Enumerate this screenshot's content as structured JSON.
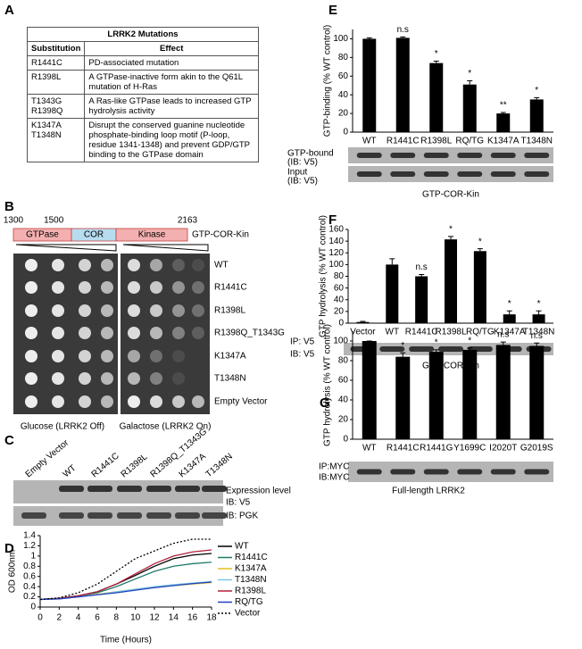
{
  "panels": [
    "A",
    "B",
    "C",
    "D",
    "E",
    "F",
    "G"
  ],
  "table": {
    "title": "LRRK2 Mutations",
    "header": [
      "Substitution",
      "Effect"
    ],
    "rows": [
      {
        "substitution": [
          "R1441C"
        ],
        "effect": "PD-associated mutation"
      },
      {
        "substitution": [
          "R1398L"
        ],
        "effect": "A GTPase-inactive form akin to the Q61L mutation of H-Ras"
      },
      {
        "substitution": [
          "T1343G",
          "R1398Q"
        ],
        "effect": "A Ras-like GTPase leads to increased GTP hydrolysis activity"
      },
      {
        "substitution": [
          "K1347A",
          "T1348N"
        ],
        "effect": "Disrupt the conserved guanine nucleotide phosphate-binding loop motif (P-loop, residue 1341-1348) and prevent GDP/GTP binding to the GTPase domain"
      }
    ]
  },
  "domain": {
    "positions": [
      1300,
      1500,
      2163
    ],
    "segments": [
      "GTPase",
      "COR",
      "Kinase"
    ],
    "construct": "GTP-COR-Kin"
  },
  "yeast": {
    "strains": [
      "WT",
      "R1441C",
      "R1398L",
      "R1398Q_T1343G",
      "K1347A",
      "T1348N",
      "Empty Vector"
    ],
    "conditions": [
      "Glucose (LRRK2 Off)",
      "Galactose (LRRK2 On)"
    ]
  },
  "western": {
    "lanes": [
      "Empty Vector",
      "WT",
      "R1441C",
      "R1398L",
      "R1398Q_T1343G",
      "K1347A",
      "T1348N"
    ],
    "labels": [
      "Expression level",
      "IB: V5",
      "IB: PGK"
    ]
  },
  "chart_data": [
    {
      "type": "line",
      "ylabel": "OD 600nm",
      "xlabel": "Time (Hours)",
      "x": [
        0,
        2,
        4,
        6,
        8,
        10,
        12,
        14,
        16,
        18
      ],
      "xlim": [
        0,
        18
      ],
      "xticks": [
        0,
        2,
        4,
        6,
        8,
        10,
        12,
        14,
        16,
        18
      ],
      "ylim": [
        0,
        1.4
      ],
      "yticks": [
        0,
        0.2,
        0.4,
        0.6,
        0.8,
        1,
        1.2,
        1.4
      ],
      "series": [
        {
          "name": "WT",
          "color": "#000000",
          "dash": false,
          "values": [
            0.15,
            0.17,
            0.22,
            0.3,
            0.45,
            0.62,
            0.8,
            0.95,
            1.02,
            1.05
          ]
        },
        {
          "name": "R1441C",
          "color": "#1f7a6a",
          "dash": false,
          "values": [
            0.15,
            0.17,
            0.22,
            0.28,
            0.4,
            0.55,
            0.7,
            0.8,
            0.85,
            0.88
          ]
        },
        {
          "name": "K1347A",
          "color": "#e0c020",
          "dash": false,
          "values": [
            0.15,
            0.16,
            0.2,
            0.25,
            0.3,
            0.35,
            0.38,
            0.42,
            0.45,
            0.48
          ]
        },
        {
          "name": "T1348N",
          "color": "#7ec8e8",
          "dash": false,
          "values": [
            0.15,
            0.16,
            0.2,
            0.24,
            0.3,
            0.35,
            0.4,
            0.44,
            0.47,
            0.5
          ]
        },
        {
          "name": "R1398L",
          "color": "#b0203a",
          "dash": false,
          "values": [
            0.15,
            0.17,
            0.22,
            0.3,
            0.45,
            0.65,
            0.85,
            1.0,
            1.08,
            1.12
          ]
        },
        {
          "name": "RQ/TG",
          "color": "#2040c0",
          "dash": false,
          "values": [
            0.15,
            0.16,
            0.2,
            0.24,
            0.28,
            0.33,
            0.38,
            0.42,
            0.46,
            0.49
          ]
        },
        {
          "name": "Vector",
          "color": "#000000",
          "dash": true,
          "values": [
            0.15,
            0.18,
            0.28,
            0.45,
            0.7,
            0.95,
            1.1,
            1.25,
            1.33,
            1.33
          ]
        }
      ]
    },
    {
      "type": "bar",
      "ylabel": "GTP-binding (% WT control)",
      "color": "#000000",
      "categories": [
        "WT",
        "R1441C",
        "R1398L",
        "RQ/TG",
        "K1347A",
        "T1348N"
      ],
      "values": [
        100,
        101,
        74,
        51,
        20,
        35
      ],
      "errors": [
        1,
        1,
        2,
        4,
        1,
        2
      ],
      "annotations": [
        null,
        "n.s",
        "*",
        "*",
        "**",
        "*"
      ],
      "ylim": [
        0,
        110
      ],
      "yticks": [
        0,
        20,
        40,
        60,
        80,
        100
      ],
      "blot_labels": [
        "GTP-bound",
        "(IB: V5)",
        "Input",
        "(IB: V5)"
      ],
      "caption": "GTP-COR-Kin"
    },
    {
      "type": "bar",
      "ylabel": "GTP hydrolysis (% WT control)",
      "color": "#000000",
      "categories": [
        "Vector",
        "WT",
        "R1441C",
        "R1398L",
        "RQ/TG",
        "K1347A",
        "T1348N"
      ],
      "values": [
        2,
        100,
        80,
        143,
        123,
        15,
        15
      ],
      "errors": [
        1,
        10,
        3,
        5,
        4,
        6,
        6
      ],
      "annotations": [
        null,
        null,
        "n.s",
        "*",
        "*",
        "*",
        "*"
      ],
      "ylim": [
        0,
        160
      ],
      "yticks": [
        0,
        20,
        40,
        60,
        80,
        100,
        120,
        140,
        160
      ],
      "blot_labels": [
        "IP: V5",
        "IB: V5"
      ],
      "caption": "GTP-COR-Kin"
    },
    {
      "type": "bar",
      "ylabel": "GTP hydrolysis (% WT control)",
      "color": "#000000",
      "categories": [
        "WT",
        "R1441C",
        "R1441G",
        "Y1699C",
        "I2020T",
        "G2019S"
      ],
      "values": [
        100,
        84,
        89,
        91,
        96,
        95
      ],
      "errors": [
        0,
        4,
        2,
        2,
        3,
        3
      ],
      "annotations": [
        null,
        "*",
        "*",
        "*",
        "n.s",
        "n.s"
      ],
      "ylim": [
        0,
        110
      ],
      "yticks": [
        0,
        20,
        40,
        60,
        80,
        100
      ],
      "blot_labels": [
        "IP:MYC",
        "IB:MYC"
      ],
      "caption": "Full-length LRRK2"
    }
  ]
}
